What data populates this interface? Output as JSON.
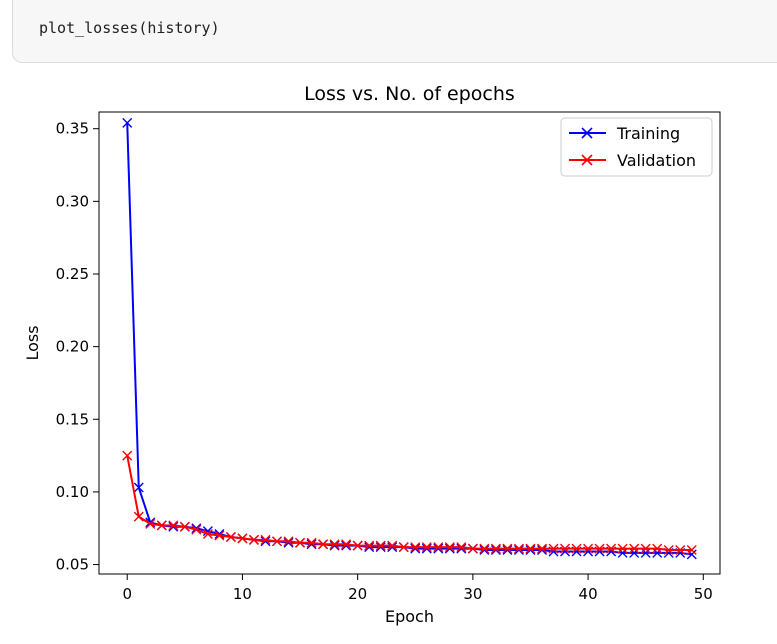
{
  "code_cell": {
    "source": "plot_losses(history)"
  },
  "chart_data": {
    "type": "line",
    "title": "Loss vs. No. of epochs",
    "xlabel": "Epoch",
    "ylabel": "Loss",
    "xlim": [
      -2.45,
      51.45
    ],
    "ylim": [
      0.0435,
      0.3615
    ],
    "xticks": [
      0,
      10,
      20,
      30,
      40,
      50
    ],
    "xtick_labels": [
      "0",
      "10",
      "20",
      "30",
      "40",
      "50"
    ],
    "yticks": [
      0.05,
      0.1,
      0.15,
      0.2,
      0.25,
      0.3,
      0.35
    ],
    "ytick_labels": [
      "0.05",
      "0.10",
      "0.15",
      "0.20",
      "0.25",
      "0.30",
      "0.35"
    ],
    "grid": false,
    "legend_position": "top-right",
    "x": [
      0,
      1,
      2,
      3,
      4,
      5,
      6,
      7,
      8,
      9,
      10,
      11,
      12,
      13,
      14,
      15,
      16,
      17,
      18,
      19,
      20,
      21,
      22,
      23,
      24,
      25,
      26,
      27,
      28,
      29,
      30,
      31,
      32,
      33,
      34,
      35,
      36,
      37,
      38,
      39,
      40,
      41,
      42,
      43,
      44,
      45,
      46,
      47,
      48,
      49
    ],
    "series": [
      {
        "name": "Training",
        "color": "#0000ff",
        "marker": "x",
        "values": [
          0.354,
          0.103,
          0.079,
          0.077,
          0.076,
          0.076,
          0.075,
          0.073,
          0.071,
          0.069,
          0.068,
          0.067,
          0.066,
          0.066,
          0.065,
          0.065,
          0.064,
          0.064,
          0.063,
          0.063,
          0.063,
          0.062,
          0.062,
          0.062,
          0.062,
          0.061,
          0.061,
          0.061,
          0.061,
          0.061,
          0.061,
          0.06,
          0.06,
          0.06,
          0.06,
          0.06,
          0.06,
          0.059,
          0.059,
          0.059,
          0.059,
          0.059,
          0.059,
          0.058,
          0.058,
          0.058,
          0.058,
          0.058,
          0.058,
          0.057
        ]
      },
      {
        "name": "Validation",
        "color": "#ff0000",
        "marker": "x",
        "values": [
          0.125,
          0.083,
          0.078,
          0.077,
          0.077,
          0.076,
          0.074,
          0.071,
          0.07,
          0.069,
          0.068,
          0.067,
          0.067,
          0.066,
          0.066,
          0.065,
          0.065,
          0.064,
          0.064,
          0.064,
          0.063,
          0.063,
          0.063,
          0.063,
          0.062,
          0.062,
          0.062,
          0.062,
          0.062,
          0.062,
          0.061,
          0.061,
          0.061,
          0.061,
          0.061,
          0.061,
          0.061,
          0.061,
          0.061,
          0.061,
          0.061,
          0.061,
          0.061,
          0.061,
          0.061,
          0.061,
          0.061,
          0.06,
          0.06,
          0.06
        ]
      }
    ]
  }
}
